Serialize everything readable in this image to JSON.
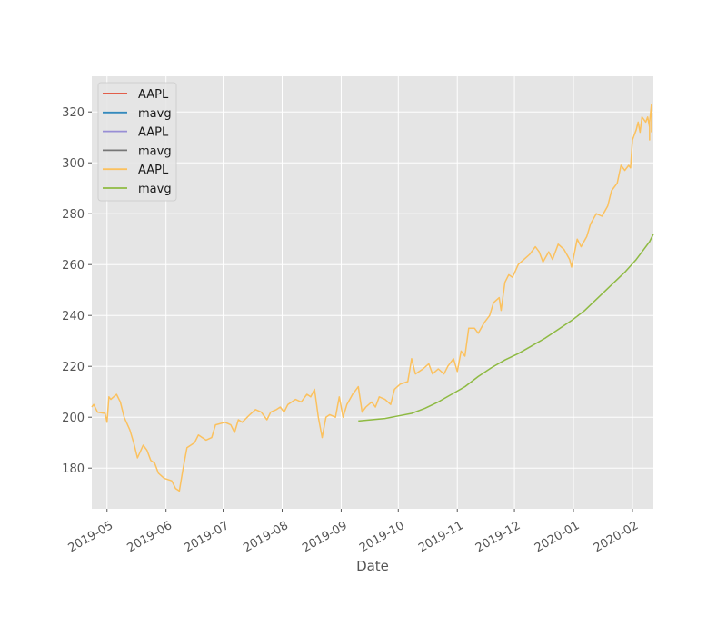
{
  "chart_data": {
    "type": "line",
    "title": "",
    "xlabel": "Date",
    "ylabel": "",
    "xlim": [
      "2019-04-23",
      "2020-02-12"
    ],
    "ylim": [
      164,
      334
    ],
    "grid": true,
    "legend_position": "top-left",
    "x_ticks": [
      "2019-05-01",
      "2019-06-01",
      "2019-07-01",
      "2019-08-01",
      "2019-09-01",
      "2019-10-01",
      "2019-11-01",
      "2019-12-01",
      "2020-01-01",
      "2020-02-01"
    ],
    "x_tick_labels": [
      "2019-05",
      "2019-06",
      "2019-07",
      "2019-08",
      "2019-09",
      "2019-10",
      "2019-11",
      "2019-12",
      "2020-01",
      "2020-02"
    ],
    "y_ticks": [
      180,
      200,
      220,
      240,
      260,
      280,
      300,
      320
    ],
    "y_tick_labels": [
      "180",
      "200",
      "220",
      "240",
      "260",
      "280",
      "300",
      "320"
    ],
    "series": [
      {
        "name": "AAPL",
        "color": "#E24A33",
        "points": []
      },
      {
        "name": "mavg",
        "color": "#348ABD",
        "points": []
      },
      {
        "name": "AAPL",
        "color": "#988ED5",
        "points": []
      },
      {
        "name": "mavg",
        "color": "#777777",
        "points": []
      },
      {
        "name": "AAPL",
        "color": "#FBC15E",
        "points": [
          [
            "2019-04-23",
            204
          ],
          [
            "2019-04-24",
            205
          ],
          [
            "2019-04-26",
            202
          ],
          [
            "2019-04-30",
            201.5
          ],
          [
            "2019-05-01",
            198
          ],
          [
            "2019-05-02",
            208
          ],
          [
            "2019-05-03",
            207
          ],
          [
            "2019-05-06",
            209
          ],
          [
            "2019-05-08",
            206
          ],
          [
            "2019-05-10",
            200
          ],
          [
            "2019-05-13",
            195
          ],
          [
            "2019-05-15",
            190
          ],
          [
            "2019-05-17",
            184
          ],
          [
            "2019-05-20",
            189
          ],
          [
            "2019-05-22",
            187
          ],
          [
            "2019-05-24",
            183
          ],
          [
            "2019-05-26",
            182
          ],
          [
            "2019-05-28",
            178
          ],
          [
            "2019-05-31",
            176
          ],
          [
            "2019-06-04",
            175
          ],
          [
            "2019-06-06",
            172
          ],
          [
            "2019-06-08",
            171
          ],
          [
            "2019-06-10",
            180
          ],
          [
            "2019-06-12",
            188
          ],
          [
            "2019-06-16",
            190
          ],
          [
            "2019-06-18",
            193
          ],
          [
            "2019-06-22",
            191
          ],
          [
            "2019-06-25",
            192
          ],
          [
            "2019-06-27",
            197
          ],
          [
            "2019-07-02",
            198
          ],
          [
            "2019-07-05",
            197
          ],
          [
            "2019-07-07",
            194
          ],
          [
            "2019-07-09",
            199
          ],
          [
            "2019-07-11",
            198
          ],
          [
            "2019-07-15",
            201
          ],
          [
            "2019-07-18",
            203
          ],
          [
            "2019-07-21",
            202
          ],
          [
            "2019-07-24",
            199
          ],
          [
            "2019-07-26",
            202
          ],
          [
            "2019-07-29",
            203
          ],
          [
            "2019-07-31",
            204
          ],
          [
            "2019-08-02",
            202
          ],
          [
            "2019-08-04",
            205
          ],
          [
            "2019-08-08",
            207
          ],
          [
            "2019-08-11",
            206
          ],
          [
            "2019-08-14",
            209
          ],
          [
            "2019-08-16",
            208
          ],
          [
            "2019-08-18",
            211
          ],
          [
            "2019-08-20",
            200
          ],
          [
            "2019-08-22",
            192
          ],
          [
            "2019-08-24",
            200
          ],
          [
            "2019-08-26",
            201
          ],
          [
            "2019-08-29",
            200
          ],
          [
            "2019-08-31",
            208
          ],
          [
            "2019-09-02",
            200
          ],
          [
            "2019-09-04",
            205
          ],
          [
            "2019-09-07",
            209
          ],
          [
            "2019-09-09",
            211
          ],
          [
            "2019-09-10",
            212
          ],
          [
            "2019-09-12",
            202
          ],
          [
            "2019-09-14",
            204
          ],
          [
            "2019-09-17",
            206
          ],
          [
            "2019-09-19",
            204
          ],
          [
            "2019-09-21",
            208
          ],
          [
            "2019-09-24",
            207
          ],
          [
            "2019-09-27",
            205
          ],
          [
            "2019-09-29",
            211
          ],
          [
            "2019-10-02",
            213
          ],
          [
            "2019-10-06",
            214
          ],
          [
            "2019-10-08",
            223
          ],
          [
            "2019-10-10",
            217
          ],
          [
            "2019-10-14",
            219
          ],
          [
            "2019-10-17",
            221
          ],
          [
            "2019-10-19",
            217
          ],
          [
            "2019-10-22",
            219
          ],
          [
            "2019-10-25",
            217
          ],
          [
            "2019-10-27",
            220
          ],
          [
            "2019-10-30",
            223
          ],
          [
            "2019-11-01",
            218
          ],
          [
            "2019-11-03",
            226
          ],
          [
            "2019-11-05",
            224
          ],
          [
            "2019-11-07",
            235
          ],
          [
            "2019-11-10",
            235
          ],
          [
            "2019-11-12",
            233
          ],
          [
            "2019-11-15",
            237
          ],
          [
            "2019-11-18",
            240
          ],
          [
            "2019-11-20",
            245
          ],
          [
            "2019-11-23",
            247
          ],
          [
            "2019-11-24",
            242
          ],
          [
            "2019-11-26",
            253
          ],
          [
            "2019-11-28",
            256
          ],
          [
            "2019-11-30",
            255
          ],
          [
            "2019-12-03",
            260
          ],
          [
            "2019-12-06",
            262
          ],
          [
            "2019-12-09",
            264
          ],
          [
            "2019-12-12",
            267
          ],
          [
            "2019-12-14",
            265
          ],
          [
            "2019-12-16",
            261
          ],
          [
            "2019-12-19",
            265
          ],
          [
            "2019-12-21",
            262
          ],
          [
            "2019-12-24",
            268
          ],
          [
            "2019-12-27",
            266
          ],
          [
            "2019-12-30",
            262
          ],
          [
            "2019-12-31",
            259
          ],
          [
            "2020-01-03",
            270
          ],
          [
            "2020-01-05",
            267
          ],
          [
            "2020-01-08",
            271
          ],
          [
            "2020-01-10",
            276
          ],
          [
            "2020-01-13",
            280
          ],
          [
            "2020-01-16",
            279
          ],
          [
            "2020-01-19",
            283
          ],
          [
            "2020-01-21",
            289
          ],
          [
            "2020-01-24",
            292
          ],
          [
            "2020-01-26",
            299
          ],
          [
            "2020-01-28",
            297
          ],
          [
            "2020-01-30",
            299
          ],
          [
            "2020-01-31",
            298
          ],
          [
            "2020-02-01",
            309
          ],
          [
            "2020-02-03",
            313
          ],
          [
            "2020-02-04",
            316
          ],
          [
            "2020-02-05",
            312
          ],
          [
            "2020-02-06",
            318
          ],
          [
            "2020-02-07",
            317
          ],
          [
            "2020-02-08",
            316
          ],
          [
            "2020-02-09",
            318
          ],
          [
            "2020-02-10",
            314
          ],
          [
            "2020-02-10",
            309
          ],
          [
            "2020-02-10",
            316
          ],
          [
            "2020-02-11",
            323
          ],
          [
            "2020-02-11",
            312
          ]
        ]
      },
      {
        "name": "mavg",
        "color": "#8EBA42",
        "points": [
          [
            "2019-09-10",
            198.5
          ],
          [
            "2019-09-17",
            199
          ],
          [
            "2019-09-24",
            199.5
          ],
          [
            "2019-10-01",
            200.5
          ],
          [
            "2019-10-08",
            201.5
          ],
          [
            "2019-10-15",
            203.5
          ],
          [
            "2019-10-22",
            206
          ],
          [
            "2019-10-29",
            209
          ],
          [
            "2019-11-05",
            212
          ],
          [
            "2019-11-12",
            216
          ],
          [
            "2019-11-19",
            219.5
          ],
          [
            "2019-11-26",
            222.5
          ],
          [
            "2019-12-03",
            225
          ],
          [
            "2019-12-10",
            228
          ],
          [
            "2019-12-17",
            231
          ],
          [
            "2019-12-24",
            234.5
          ],
          [
            "2019-12-31",
            238
          ],
          [
            "2020-01-07",
            242
          ],
          [
            "2020-01-14",
            247
          ],
          [
            "2020-01-21",
            252
          ],
          [
            "2020-01-28",
            257
          ],
          [
            "2020-02-03",
            262
          ],
          [
            "2020-02-07",
            266
          ],
          [
            "2020-02-10",
            269
          ],
          [
            "2020-02-12",
            272
          ]
        ]
      }
    ]
  }
}
